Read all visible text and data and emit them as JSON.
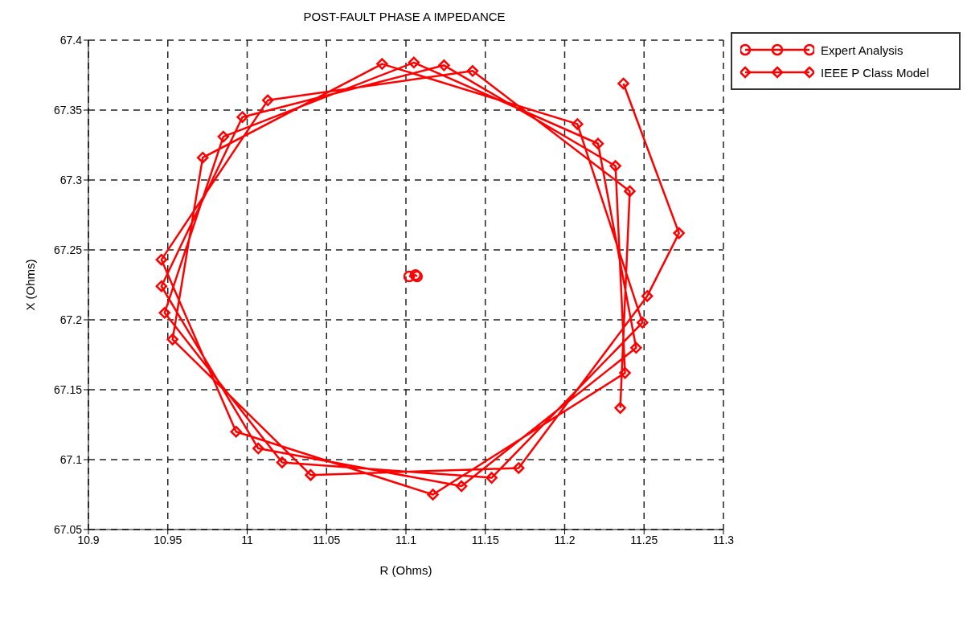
{
  "chart_data": {
    "type": "line",
    "title": "POST-FAULT PHASE A IMPEDANCE",
    "xlabel": "R (Ohms)",
    "ylabel": "X (Ohms)",
    "xlim": [
      10.9,
      11.3
    ],
    "xticks": [
      10.9,
      10.95,
      11,
      11.05,
      11.1,
      11.15,
      11.2,
      11.25,
      11.3
    ],
    "ylim": [
      67.05,
      67.4
    ],
    "yticks": [
      67.05,
      67.1,
      67.15,
      67.2,
      67.25,
      67.3,
      67.35,
      67.4
    ],
    "grid": true,
    "legend": "top right",
    "line_style": "solid",
    "series": [
      {
        "name": "Expert Analysis",
        "color": "#ff0000",
        "marker": "circle",
        "x": [
          11.102,
          11.106,
          11.107
        ],
        "values": [
          67.231,
          67.232,
          67.231
        ]
      },
      {
        "name": "IEEE P Class Model",
        "color": "#ff0000",
        "marker": "diamond",
        "x": [
          11.237,
          11.272,
          11.252,
          11.171,
          11.04,
          10.953,
          10.972,
          11.085,
          11.208,
          11.249,
          11.154,
          11.022,
          10.948,
          10.985,
          11.105,
          11.221,
          11.245,
          11.135,
          11.007,
          10.946,
          10.997,
          11.124,
          11.232,
          11.238,
          11.117,
          10.993,
          10.946,
          11.013,
          11.142,
          11.241,
          11.235
        ],
        "values": [
          67.369,
          67.262,
          67.217,
          67.094,
          67.089,
          67.186,
          67.316,
          67.383,
          67.34,
          67.198,
          67.087,
          67.098,
          67.205,
          67.331,
          67.384,
          67.326,
          67.18,
          67.081,
          67.108,
          67.224,
          67.345,
          67.382,
          67.31,
          67.162,
          67.075,
          67.12,
          67.243,
          67.357,
          67.378,
          67.292,
          67.137
        ]
      }
    ]
  }
}
